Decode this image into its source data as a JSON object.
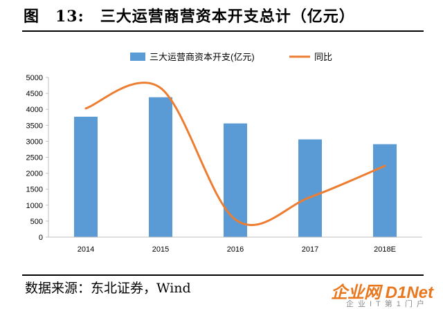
{
  "figure": {
    "title": "图　13:　三大运营商营资本开支总计（亿元）",
    "source": "数据来源：东北证券，Wind"
  },
  "watermark": {
    "main": "企业网 D1Net",
    "sub": "企业IT第1门户"
  },
  "colors": {
    "bar": "#5b9bd5",
    "line": "#ed7d31",
    "axis": "#bfbfbf",
    "text": "#000000"
  },
  "chart_data": {
    "type": "bar",
    "categories": [
      "2014",
      "2015",
      "2016",
      "2017",
      "2018E"
    ],
    "series": [
      {
        "name": "三大运营商资本开支(亿元)",
        "type": "bar",
        "axis": "left",
        "values": [
          3770,
          4380,
          3560,
          3060,
          2910
        ]
      },
      {
        "name": "同比",
        "type": "line",
        "smooth": true,
        "axis": "right",
        "values": [
          4030,
          4670,
          550,
          1250,
          2230
        ]
      }
    ],
    "yticks": [
      "0",
      "500",
      "1000",
      "1500",
      "2000",
      "2500",
      "3000",
      "3500",
      "4000",
      "4500",
      "5000"
    ],
    "ylim": [
      0,
      5000
    ],
    "grid": false,
    "legend": "top"
  }
}
